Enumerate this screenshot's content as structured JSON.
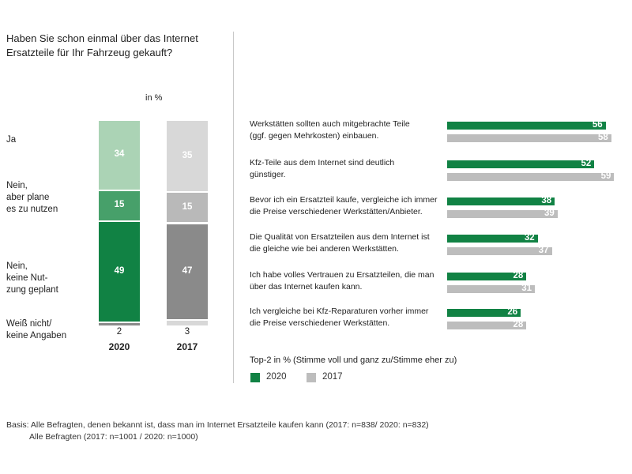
{
  "title": "Haben Sie schon einmal über das Internet Ersatzteile für Ihr Fahrzeug gekauft?",
  "unit": "in %",
  "colors": {
    "green_dark": "#118244",
    "green_mid": "#47a06a",
    "green_light": "#abd3b5",
    "grey_light": "#d8d8d8",
    "grey_mid": "#b9b9b9",
    "grey_dark": "#8a8a8a",
    "grey_bar": "#bdbdbd"
  },
  "chart_data": [
    {
      "type": "bar",
      "stacked": true,
      "title": "Haben Sie schon einmal über das Internet Ersatzteile für Ihr Fahrzeug gekauft?",
      "unit": "in %",
      "categories": [
        "2020",
        "2017"
      ],
      "series": [
        {
          "name": "Ja",
          "values": [
            34,
            35
          ]
        },
        {
          "name": "Nein, aber plane es zu nutzen",
          "values": [
            15,
            15
          ]
        },
        {
          "name": "Nein, keine Nutzung geplant",
          "values": [
            49,
            47
          ]
        },
        {
          "name": "Weiß nicht/ keine Angaben",
          "values": [
            2,
            3
          ]
        }
      ],
      "ylim": [
        0,
        100
      ]
    },
    {
      "type": "bar",
      "orientation": "horizontal",
      "title": "Top-2 in % (Stimme voll und ganz zu/Stimme eher zu)",
      "categories": [
        "Werkstätten sollten auch mitgebrachte Teile (ggf. gegen Mehrkosten) einbauen.",
        "Kfz-Teile aus dem Internet sind deutlich günstiger.",
        "Bevor ich ein Ersatzteil kaufe, vergleiche ich immer die Preise verschiedener Werkstätten/Anbieter.",
        "Die Qualität von Ersatzteilen aus dem Internet ist die gleiche wie bei anderen Werkstätten.",
        "Ich habe volles Vertrauen zu Ersatzteilen, die man über das Internet kaufen kann.",
        "Ich vergleiche bei Kfz-Reparaturen vorher immer die Preise verschiedener Werkstätten."
      ],
      "series": [
        {
          "name": "2020",
          "values": [
            56,
            52,
            38,
            32,
            28,
            26
          ]
        },
        {
          "name": "2017",
          "values": [
            58,
            59,
            39,
            37,
            31,
            28
          ]
        }
      ],
      "xlim": [
        0,
        60
      ]
    }
  ],
  "left_labels": {
    "ja": [
      "Ja"
    ],
    "plane": [
      "Nein,",
      "aber plane",
      "es zu nutzen"
    ],
    "keine": [
      "Nein,",
      "keine Nut-",
      "zung geplant"
    ],
    "weiss": [
      "Weiß nicht/",
      "keine Angaben"
    ]
  },
  "statements": [
    [
      "Werkstätten sollten auch mitgebrachte Teile",
      "(ggf. gegen Mehrkosten) einbauen."
    ],
    [
      "Kfz-Teile aus dem Internet sind deutlich",
      "günstiger."
    ],
    [
      "Bevor ich ein Ersatzteil kaufe, vergleiche ich immer",
      "die Preise verschiedener Werkstätten/Anbieter."
    ],
    [
      "Die Qualität von Ersatzteilen aus dem Internet ist",
      "die gleiche wie bei anderen Werkstätten."
    ],
    [
      "Ich habe volles Vertrauen zu Ersatzteilen, die man",
      "über das Internet kaufen kann."
    ],
    [
      "Ich vergleiche bei Kfz-Reparaturen vorher immer",
      "die Preise verschiedener Werkstätten."
    ]
  ],
  "legend": {
    "title": "Top-2 in % (Stimme voll und ganz zu/Stimme eher zu)",
    "items": [
      "2020",
      "2017"
    ]
  },
  "footnote": {
    "line1": "Basis: Alle Befragten, denen bekannt ist, dass man im Internet Ersatzteile kaufen kann (2017: n=838/ 2020: n=832)",
    "line2": "Alle Befragten (2017: n=1001 / 2020: n=1000)"
  }
}
